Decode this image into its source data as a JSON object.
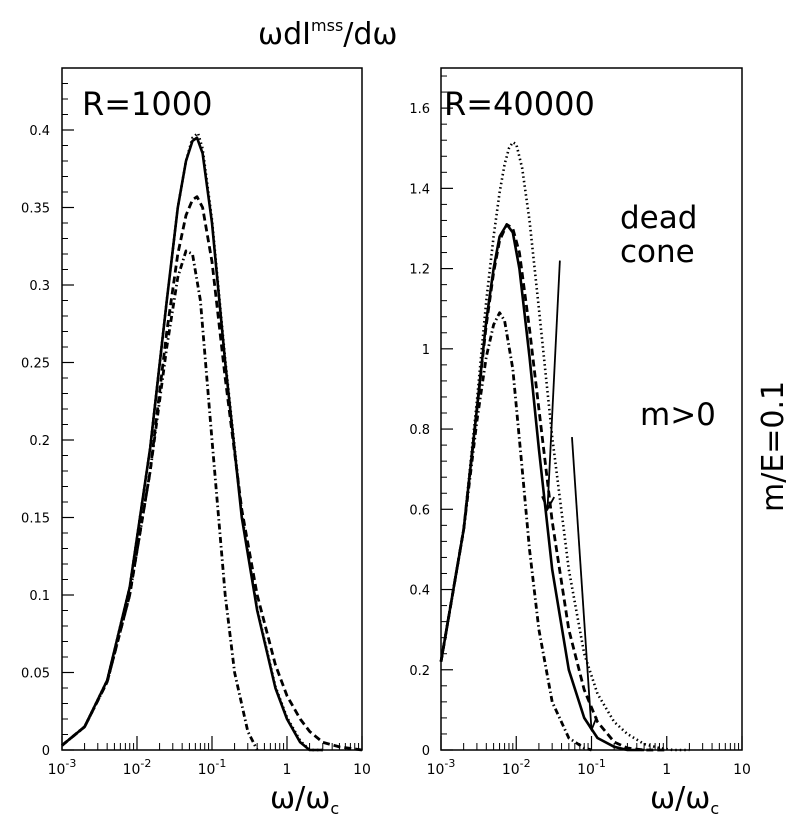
{
  "figure_title": "ωdI^mss/dω",
  "figure_title_main": "ωdI",
  "figure_title_sup": "mss",
  "figure_title_tail": "/dω",
  "side_label": "m/E=0.1",
  "chart_data": [
    {
      "type": "line",
      "label": "R=1000",
      "xlabel": "ω/ω_c",
      "xlabel_main": "ω/ω",
      "xlabel_sub": "c",
      "ylabel": "",
      "xscale": "log",
      "xlim": [
        0.001,
        10
      ],
      "ylim": [
        0,
        0.44
      ],
      "x_ticks": [
        0.001,
        0.01,
        0.1,
        1,
        10
      ],
      "x_tick_labels": [
        {
          "base": "10",
          "exp": "-3"
        },
        {
          "base": "10",
          "exp": "-2"
        },
        {
          "base": "10",
          "exp": "-1"
        },
        {
          "base": "1",
          "exp": ""
        },
        {
          "base": "10",
          "exp": ""
        }
      ],
      "y_ticks": [
        0,
        0.05,
        0.1,
        0.15,
        0.2,
        0.25,
        0.3,
        0.35,
        0.4
      ],
      "y_tick_labels": [
        "0",
        "0.05",
        "0.1",
        "0.15",
        "0.2",
        "0.25",
        "0.3",
        "0.35",
        "0.4"
      ],
      "series": [
        {
          "style": "solid",
          "x": [
            0.001,
            0.002,
            0.004,
            0.008,
            0.015,
            0.025,
            0.035,
            0.045,
            0.055,
            0.063,
            0.075,
            0.1,
            0.15,
            0.25,
            0.4,
            0.7,
            1.0,
            1.5,
            2.0,
            3.0
          ],
          "y": [
            0.003,
            0.015,
            0.045,
            0.105,
            0.195,
            0.29,
            0.35,
            0.38,
            0.393,
            0.395,
            0.385,
            0.34,
            0.25,
            0.15,
            0.09,
            0.04,
            0.02,
            0.005,
            0.0,
            0.0
          ]
        },
        {
          "style": "dotted",
          "x": [
            0.001,
            0.002,
            0.004,
            0.008,
            0.015,
            0.025,
            0.035,
            0.045,
            0.055,
            0.065,
            0.075,
            0.1,
            0.15,
            0.25,
            0.4,
            0.7,
            1.0,
            1.5,
            2.0,
            3.0
          ],
          "y": [
            0.003,
            0.015,
            0.045,
            0.105,
            0.195,
            0.29,
            0.35,
            0.38,
            0.395,
            0.398,
            0.388,
            0.342,
            0.252,
            0.152,
            0.091,
            0.041,
            0.021,
            0.006,
            0.0,
            0.0
          ]
        },
        {
          "style": "dashed",
          "x": [
            0.001,
            0.002,
            0.004,
            0.008,
            0.015,
            0.025,
            0.035,
            0.045,
            0.055,
            0.063,
            0.075,
            0.1,
            0.15,
            0.25,
            0.4,
            0.7,
            1.0,
            1.5,
            2.0,
            3.0,
            5.0,
            10.0
          ],
          "y": [
            0.003,
            0.015,
            0.044,
            0.1,
            0.18,
            0.27,
            0.32,
            0.345,
            0.355,
            0.357,
            0.35,
            0.315,
            0.24,
            0.155,
            0.1,
            0.055,
            0.035,
            0.02,
            0.012,
            0.005,
            0.002,
            0.0
          ]
        },
        {
          "style": "dashdot",
          "x": [
            0.001,
            0.002,
            0.004,
            0.008,
            0.015,
            0.025,
            0.035,
            0.045,
            0.055,
            0.07,
            0.1,
            0.15,
            0.2,
            0.3,
            0.4
          ],
          "y": [
            0.003,
            0.015,
            0.044,
            0.1,
            0.18,
            0.26,
            0.305,
            0.322,
            0.32,
            0.29,
            0.2,
            0.1,
            0.05,
            0.012,
            0.0
          ]
        }
      ]
    },
    {
      "type": "line",
      "label": "R=40000",
      "xlabel": "ω/ω_c",
      "xlabel_main": "ω/ω",
      "xlabel_sub": "c",
      "ylabel": "",
      "xscale": "log",
      "xlim": [
        0.001,
        10
      ],
      "ylim": [
        0,
        1.7
      ],
      "x_ticks": [
        0.001,
        0.01,
        0.1,
        1,
        10
      ],
      "x_tick_labels": [
        {
          "base": "10",
          "exp": "-3"
        },
        {
          "base": "10",
          "exp": "-2"
        },
        {
          "base": "10",
          "exp": "-1"
        },
        {
          "base": "1",
          "exp": ""
        },
        {
          "base": "10",
          "exp": ""
        }
      ],
      "y_ticks": [
        0,
        0.2,
        0.4,
        0.6,
        0.8,
        1.0,
        1.2,
        1.4,
        1.6
      ],
      "y_tick_labels": [
        "0",
        "0.2",
        "0.4",
        "0.6",
        "0.8",
        "1",
        "1.2",
        "1.4",
        "1.6"
      ],
      "annotations": [
        {
          "text_lines": [
            "dead",
            "cone"
          ],
          "arrow_from": [
            0.038,
            1.22
          ],
          "arrow_to": [
            0.026,
            0.6
          ]
        },
        {
          "text_lines": [
            "m>0"
          ],
          "arrow_from": [
            0.055,
            0.78
          ],
          "arrow_to": [
            0.1,
            0.05
          ]
        }
      ],
      "series": [
        {
          "style": "solid",
          "x": [
            0.001,
            0.002,
            0.003,
            0.004,
            0.005,
            0.006,
            0.0075,
            0.009,
            0.011,
            0.015,
            0.02,
            0.03,
            0.05,
            0.08,
            0.12,
            0.2,
            0.3,
            0.5
          ],
          "y": [
            0.22,
            0.55,
            0.85,
            1.07,
            1.2,
            1.28,
            1.31,
            1.29,
            1.2,
            0.98,
            0.75,
            0.45,
            0.2,
            0.08,
            0.03,
            0.008,
            0.0,
            0.0
          ]
        },
        {
          "style": "dotted",
          "x": [
            0.001,
            0.002,
            0.003,
            0.004,
            0.005,
            0.006,
            0.007,
            0.008,
            0.009,
            0.01,
            0.012,
            0.015,
            0.02,
            0.03,
            0.05,
            0.08,
            0.12,
            0.2,
            0.3,
            0.5,
            0.8,
            1.2,
            2.0
          ],
          "y": [
            0.22,
            0.55,
            0.87,
            1.12,
            1.28,
            1.39,
            1.46,
            1.5,
            1.515,
            1.51,
            1.45,
            1.32,
            1.1,
            0.78,
            0.45,
            0.24,
            0.14,
            0.07,
            0.04,
            0.015,
            0.005,
            0.0,
            0.0
          ]
        },
        {
          "style": "dashed",
          "x": [
            0.001,
            0.002,
            0.003,
            0.004,
            0.005,
            0.006,
            0.0075,
            0.009,
            0.011,
            0.015,
            0.02,
            0.03,
            0.05,
            0.08,
            0.12,
            0.2,
            0.3,
            0.5,
            1.0
          ],
          "y": [
            0.22,
            0.55,
            0.85,
            1.06,
            1.19,
            1.27,
            1.31,
            1.3,
            1.24,
            1.05,
            0.85,
            0.57,
            0.3,
            0.15,
            0.07,
            0.02,
            0.005,
            0.0,
            0.0
          ]
        },
        {
          "style": "dashdot",
          "x": [
            0.001,
            0.002,
            0.003,
            0.004,
            0.005,
            0.006,
            0.007,
            0.009,
            0.012,
            0.015,
            0.02,
            0.03,
            0.05,
            0.08,
            0.1
          ],
          "y": [
            0.22,
            0.55,
            0.82,
            0.98,
            1.06,
            1.09,
            1.07,
            0.95,
            0.7,
            0.5,
            0.3,
            0.12,
            0.03,
            0.005,
            0.0
          ]
        }
      ]
    }
  ]
}
